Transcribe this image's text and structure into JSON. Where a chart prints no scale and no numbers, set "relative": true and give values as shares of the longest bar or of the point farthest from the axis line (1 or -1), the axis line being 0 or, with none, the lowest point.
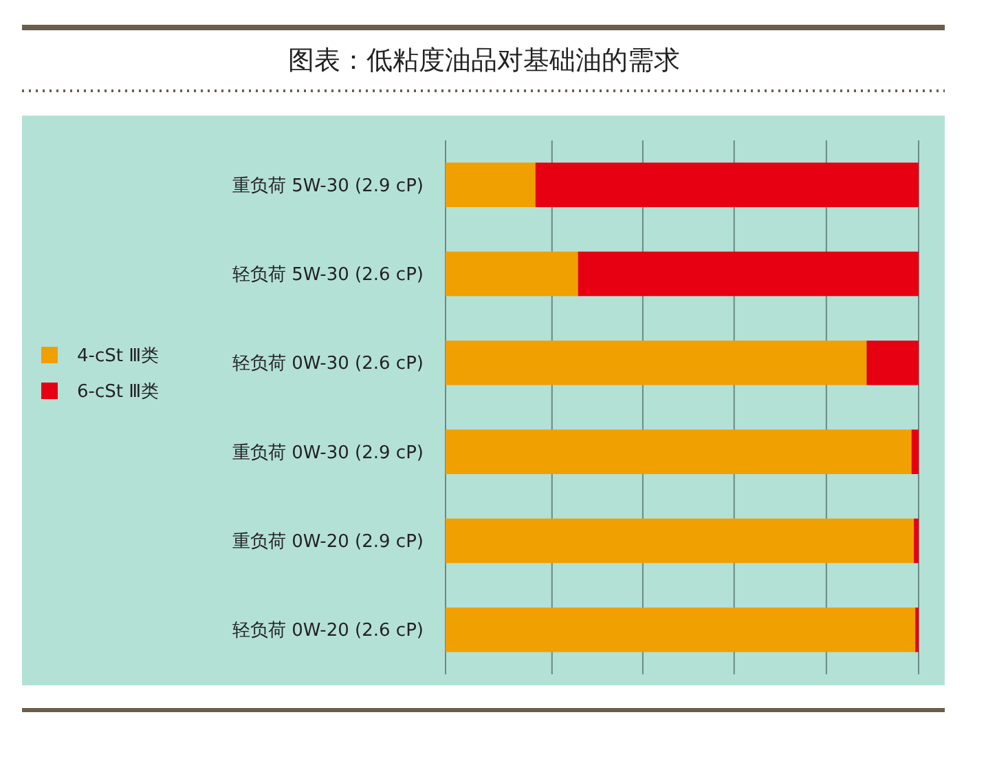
{
  "chart_data": {
    "type": "bar",
    "title": "图表：低粘度油品对基础油的需求",
    "orientation": "horizontal",
    "stacked": true,
    "relative": true,
    "grid": "x",
    "legend": "left",
    "categories": [
      "重负荷 5W-30 (2.9 cP)",
      "轻负荷 5W-30 (2.6 cP)",
      "轻负荷 0W-30 (2.6 cP)",
      "重负荷 0W-30 (2.9 cP)",
      "重负荷 0W-20 (2.9 cP)",
      "轻负荷 0W-20 (2.6 cP)"
    ],
    "series": [
      {
        "name": "4-cSt Ⅲ类",
        "color": "#f0a000",
        "values": [
          0.19,
          0.28,
          0.89,
          0.985,
          0.99,
          0.993
        ]
      },
      {
        "name": "6-cSt Ⅲ类",
        "color": "#e60012",
        "values": [
          0.81,
          0.72,
          0.11,
          0.015,
          0.01,
          0.007
        ]
      }
    ]
  }
}
